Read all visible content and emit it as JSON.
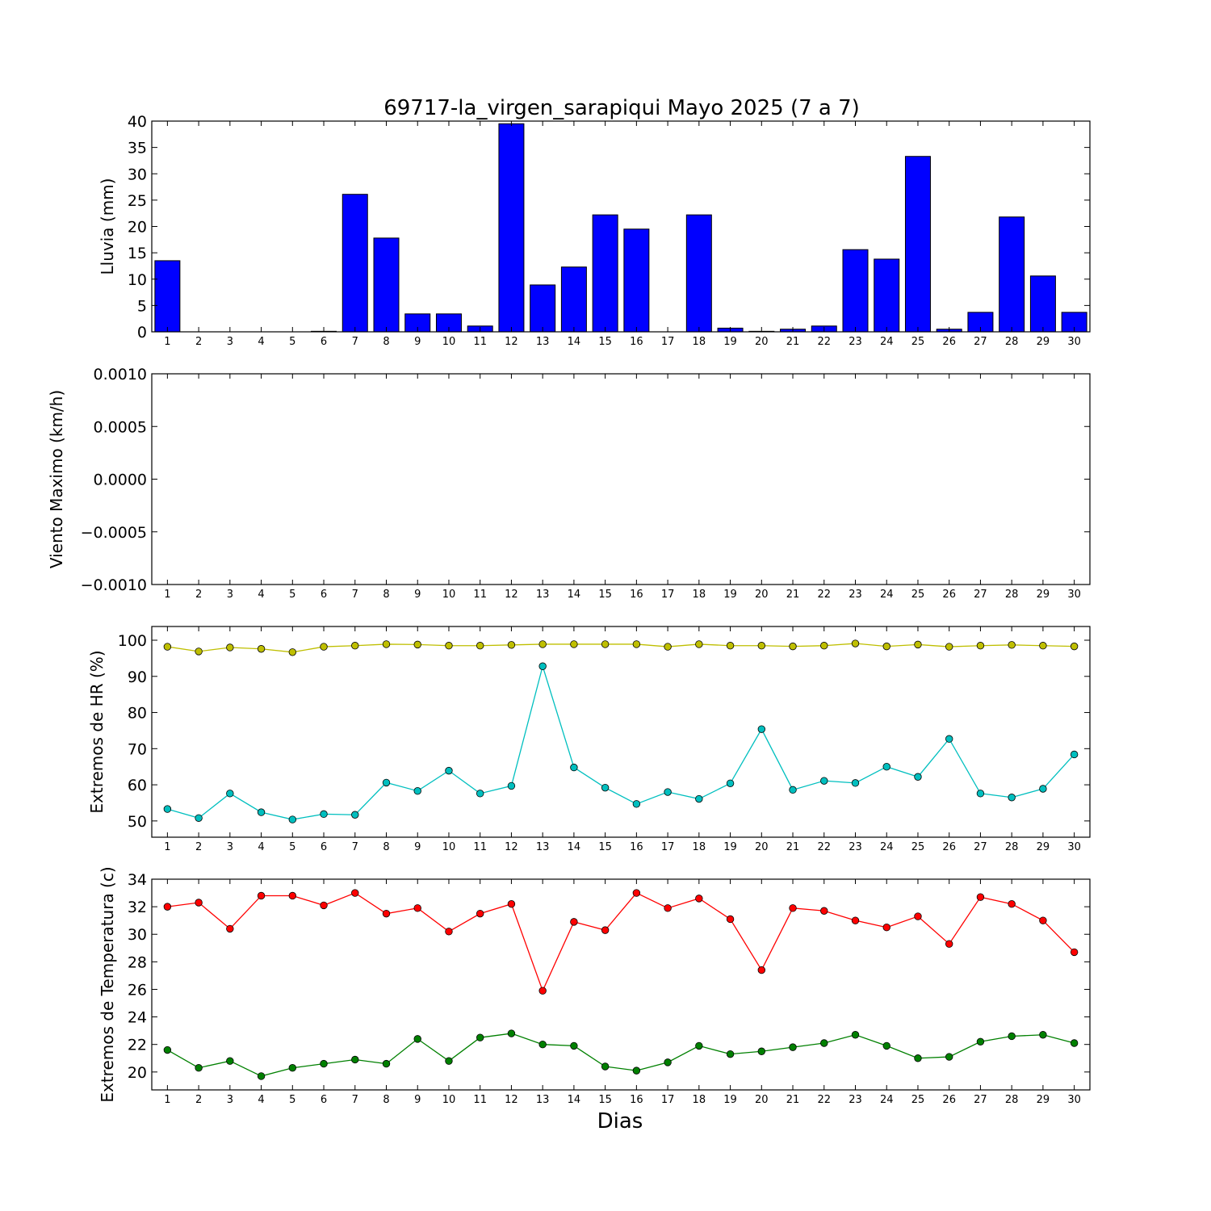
{
  "title": "69717-la_virgen_sarapiqui Mayo 2025  (7 a 7)",
  "xlabel": "Dias",
  "chart_data": [
    {
      "type": "bar",
      "ylabel": "Lluvia (mm)",
      "ylim": [
        0,
        40
      ],
      "yticks": [
        "0",
        "5",
        "10",
        "15",
        "20",
        "25",
        "30",
        "35",
        "40"
      ],
      "categories": [
        "1",
        "2",
        "3",
        "4",
        "5",
        "6",
        "7",
        "8",
        "9",
        "10",
        "11",
        "12",
        "13",
        "14",
        "15",
        "16",
        "17",
        "18",
        "19",
        "20",
        "21",
        "22",
        "23",
        "24",
        "25",
        "26",
        "27",
        "28",
        "29",
        "30"
      ],
      "series": [
        {
          "color": "#0000ff",
          "values": [
            13.5,
            0,
            0,
            0,
            0,
            0.1,
            26.1,
            17.8,
            3.4,
            3.4,
            1.1,
            39.5,
            8.9,
            12.3,
            22.2,
            19.5,
            0,
            22.2,
            0.7,
            0.1,
            0.5,
            1.1,
            15.6,
            13.8,
            33.3,
            0.5,
            3.7,
            21.8,
            10.6,
            3.7
          ]
        }
      ],
      "grid": false
    },
    {
      "type": "line",
      "ylabel": "Viento Maximo (km/h)",
      "ylim": [
        -0.001,
        0.001
      ],
      "yticks": [
        "−0.0010",
        "−0.0005",
        "0.0000",
        "0.0005",
        "0.0010"
      ],
      "categories": [
        "1",
        "2",
        "3",
        "4",
        "5",
        "6",
        "7",
        "8",
        "9",
        "10",
        "11",
        "12",
        "13",
        "14",
        "15",
        "16",
        "17",
        "18",
        "19",
        "20",
        "21",
        "22",
        "23",
        "24",
        "25",
        "26",
        "27",
        "28",
        "29",
        "30"
      ],
      "series": [],
      "grid": false
    },
    {
      "type": "line",
      "ylabel": "Extremos de HR (%)",
      "ylim": [
        45.5,
        103.8
      ],
      "yticks": [
        "50",
        "60",
        "70",
        "80",
        "90",
        "100"
      ],
      "categories": [
        "1",
        "2",
        "3",
        "4",
        "5",
        "6",
        "7",
        "8",
        "9",
        "10",
        "11",
        "12",
        "13",
        "14",
        "15",
        "16",
        "17",
        "18",
        "19",
        "20",
        "21",
        "22",
        "23",
        "24",
        "25",
        "26",
        "27",
        "28",
        "29",
        "30"
      ],
      "series": [
        {
          "color": "#bfbf00",
          "values": [
            98.2,
            96.9,
            98.0,
            97.6,
            96.7,
            98.2,
            98.5,
            98.9,
            98.8,
            98.5,
            98.5,
            98.7,
            98.9,
            98.9,
            98.9,
            98.9,
            98.2,
            98.9,
            98.5,
            98.5,
            98.3,
            98.5,
            99.1,
            98.3,
            98.8,
            98.2,
            98.5,
            98.7,
            98.5,
            98.3
          ]
        },
        {
          "color": "#00bfbf",
          "values": [
            53.3,
            50.8,
            57.6,
            52.4,
            50.4,
            51.9,
            51.7,
            60.6,
            58.3,
            63.9,
            57.6,
            59.7,
            92.8,
            64.8,
            59.2,
            54.7,
            58.0,
            56.1,
            60.4,
            75.4,
            58.6,
            61.1,
            60.5,
            65.0,
            62.2,
            72.7,
            57.6,
            56.5,
            58.9,
            68.4
          ]
        }
      ],
      "grid": false
    },
    {
      "type": "line",
      "ylabel": "Extremos de Temperatura (c)",
      "ylim": [
        18.7,
        34
      ],
      "yticks": [
        "20",
        "22",
        "24",
        "26",
        "28",
        "30",
        "32",
        "34"
      ],
      "categories": [
        "1",
        "2",
        "3",
        "4",
        "5",
        "6",
        "7",
        "8",
        "9",
        "10",
        "11",
        "12",
        "13",
        "14",
        "15",
        "16",
        "17",
        "18",
        "19",
        "20",
        "21",
        "22",
        "23",
        "24",
        "25",
        "26",
        "27",
        "28",
        "29",
        "30"
      ],
      "series": [
        {
          "color": "#ff0000",
          "values": [
            32.0,
            32.3,
            30.4,
            32.8,
            32.8,
            32.1,
            33.0,
            31.5,
            31.9,
            30.2,
            31.5,
            32.2,
            25.9,
            30.9,
            30.3,
            33.0,
            31.9,
            32.6,
            31.1,
            27.4,
            31.9,
            31.7,
            31.0,
            30.5,
            31.3,
            29.3,
            32.7,
            32.2,
            31.0,
            28.7
          ]
        },
        {
          "color": "#008000",
          "values": [
            21.6,
            20.3,
            20.8,
            19.7,
            20.3,
            20.6,
            20.9,
            20.6,
            22.4,
            20.8,
            22.5,
            22.8,
            22.0,
            21.9,
            20.4,
            20.1,
            20.7,
            21.9,
            21.3,
            21.5,
            21.8,
            22.1,
            22.7,
            21.9,
            21.0,
            21.1,
            22.2,
            22.6,
            22.7,
            22.1
          ]
        }
      ],
      "grid": false
    }
  ]
}
